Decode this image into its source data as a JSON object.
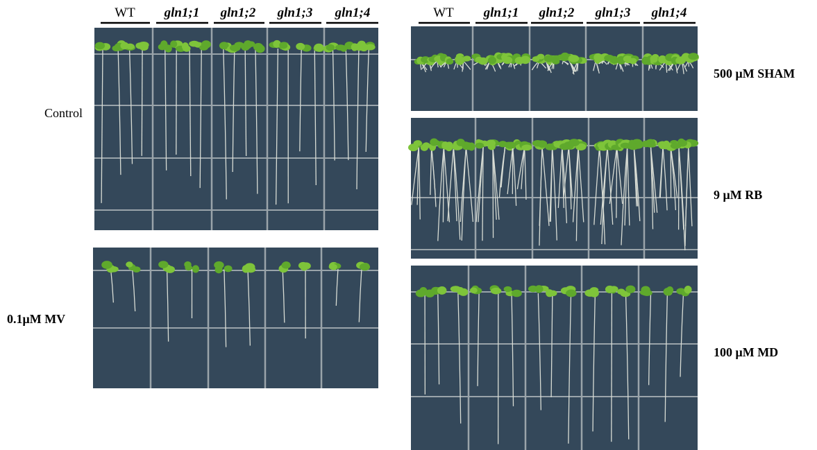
{
  "left": {
    "headers": [
      "WT",
      "gln1;1",
      "gln1;2",
      "gln1;3",
      "gln1;4"
    ],
    "panels": [
      "Control",
      "0.1μM MV"
    ]
  },
  "right": {
    "headers": [
      "WT",
      "gln1;1",
      "gln1;2",
      "gln1;3",
      "gln1;4"
    ],
    "panels": [
      "500 μM SHAM",
      "9 μM RB",
      "100 μM MD"
    ]
  }
}
